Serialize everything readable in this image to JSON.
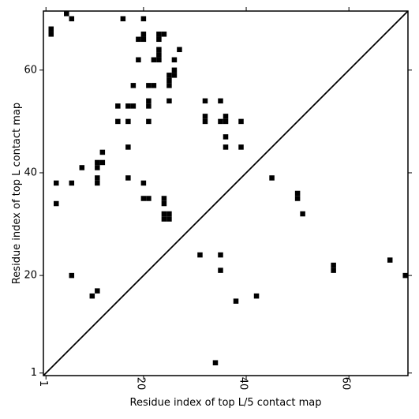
{
  "chart_data": {
    "type": "heatmap",
    "title": "",
    "xlabel": "Residue index of top L/5 contact map",
    "ylabel": "Residue index of top L contact map",
    "xlim": [
      0.5,
      71.5
    ],
    "ylim": [
      0.5,
      71.5
    ],
    "xticks": [
      1,
      20,
      40,
      60
    ],
    "yticks": [
      1,
      20,
      40,
      60
    ],
    "xtick_labels": [
      "1",
      "20",
      "40",
      "60"
    ],
    "ytick_labels": [
      "1",
      "20",
      "40",
      "60"
    ],
    "grid": false,
    "diagonal_line": true,
    "cell_color": "#000000",
    "upper_points": [
      [
        5,
        71
      ],
      [
        6,
        70
      ],
      [
        16,
        70
      ],
      [
        20,
        70
      ],
      [
        2,
        68
      ],
      [
        2,
        67
      ],
      [
        20,
        67
      ],
      [
        20,
        66
      ],
      [
        19,
        66
      ],
      [
        23,
        67
      ],
      [
        23,
        66
      ],
      [
        24,
        67
      ],
      [
        23,
        64
      ],
      [
        23,
        63
      ],
      [
        23,
        62
      ],
      [
        22,
        62
      ],
      [
        27,
        64
      ],
      [
        19,
        62
      ],
      [
        26,
        62
      ],
      [
        26,
        60
      ],
      [
        26,
        59
      ],
      [
        25,
        59
      ],
      [
        25,
        58
      ],
      [
        25,
        57
      ],
      [
        18,
        57
      ],
      [
        21,
        57
      ],
      [
        22,
        57
      ],
      [
        15,
        53
      ],
      [
        17,
        53
      ],
      [
        18,
        53
      ],
      [
        21,
        54
      ],
      [
        21,
        53
      ],
      [
        25,
        54
      ],
      [
        32,
        54
      ],
      [
        35,
        54
      ],
      [
        15,
        50
      ],
      [
        17,
        50
      ],
      [
        21,
        50
      ],
      [
        32,
        51
      ],
      [
        32,
        50
      ],
      [
        35,
        50
      ],
      [
        36,
        51
      ],
      [
        36,
        50
      ],
      [
        39,
        50
      ],
      [
        36,
        47
      ],
      [
        17,
        45
      ],
      [
        36,
        45
      ],
      [
        39,
        45
      ],
      [
        12,
        44
      ],
      [
        12,
        42
      ],
      [
        11,
        42
      ],
      [
        11,
        41
      ],
      [
        8,
        41
      ],
      [
        11,
        39
      ],
      [
        11,
        38
      ],
      [
        17,
        39
      ],
      [
        45,
        39
      ],
      [
        3,
        38
      ],
      [
        6,
        38
      ],
      [
        20,
        38
      ],
      [
        20,
        35
      ],
      [
        21,
        35
      ],
      [
        24,
        35
      ],
      [
        24,
        34
      ],
      [
        50,
        36
      ],
      [
        50,
        35
      ],
      [
        3,
        34
      ],
      [
        24,
        32
      ],
      [
        25,
        32
      ],
      [
        24,
        31
      ],
      [
        25,
        31
      ],
      [
        51,
        32
      ]
    ],
    "lower_points": [
      [
        31,
        24
      ],
      [
        35,
        24
      ],
      [
        35,
        21
      ],
      [
        57,
        22
      ],
      [
        57,
        21
      ],
      [
        68,
        23
      ],
      [
        71,
        20
      ],
      [
        6,
        20
      ],
      [
        11,
        17
      ],
      [
        10,
        16
      ],
      [
        38,
        15
      ],
      [
        42,
        16
      ],
      [
        34,
        3
      ]
    ]
  }
}
